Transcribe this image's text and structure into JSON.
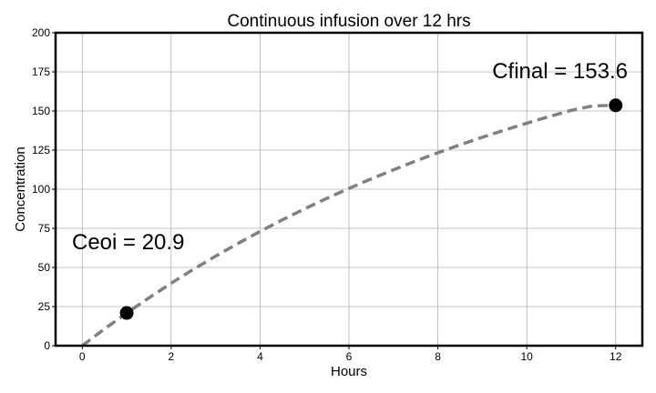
{
  "chart_data": {
    "type": "line",
    "title": "Continuous infusion over 12 hrs",
    "xlabel": "Hours",
    "ylabel": "Concentration",
    "xlim": [
      -0.6,
      12.6
    ],
    "ylim": [
      0,
      200
    ],
    "xticks": [
      0,
      2,
      4,
      6,
      8,
      10,
      12
    ],
    "yticks": [
      0,
      25,
      50,
      75,
      100,
      125,
      150,
      175,
      200
    ],
    "grid": true,
    "series": [
      {
        "style": "dashed",
        "color": "#808080",
        "x": [
          0,
          0.5,
          1,
          1.5,
          2,
          2.5,
          3,
          3.5,
          4,
          4.5,
          5,
          5.5,
          6,
          6.5,
          7,
          7.5,
          8,
          8.5,
          9,
          9.5,
          10,
          10.5,
          11,
          11.5,
          12
        ],
        "y": [
          0,
          10.7,
          20.9,
          30.6,
          39.9,
          48.8,
          57.2,
          65.3,
          73.0,
          80.4,
          87.4,
          94.1,
          100.5,
          106.6,
          112.4,
          118.0,
          123.3,
          128.4,
          133.2,
          137.8,
          142.2,
          146.4,
          150.4,
          153.3,
          153.6
        ]
      }
    ],
    "points": [
      {
        "x": 1,
        "y": 20.9,
        "label": "Ceoi = 20.9",
        "color": "#000000"
      },
      {
        "x": 12,
        "y": 153.6,
        "label": "Cfinal = 153.6",
        "color": "#000000"
      }
    ]
  }
}
